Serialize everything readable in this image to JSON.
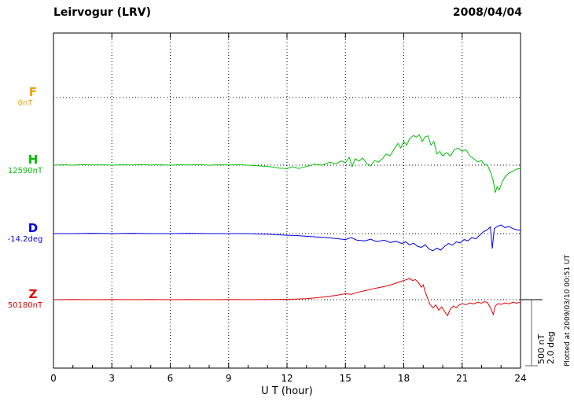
{
  "chart_data": {
    "type": "line",
    "title": "Leirvogur (LRV)",
    "date": "2008/04/04",
    "xlabel": "U T (hour)",
    "x_range": [
      0,
      24
    ],
    "x_ticks": [
      0,
      3,
      6,
      9,
      12,
      15,
      18,
      21,
      24
    ],
    "grid": "dotted vertical lines every 3 hours; dotted horizontal baseline per trace",
    "legend_position": "left margin",
    "scale_bar": {
      "nT": 500,
      "deg": 2.0,
      "lines": [
        "500 nT",
        "2.0 deg"
      ]
    },
    "plotted_note": "Plotted at 2009/03/10 00:51 UT",
    "series": [
      {
        "name": "F",
        "label": "F",
        "baseline_label": "0nT",
        "unit": "nT",
        "color": "#f0a000",
        "points": []
      },
      {
        "name": "H",
        "label": "H",
        "baseline_label": "12590nT",
        "unit": "nT",
        "color": "#00c000",
        "points": [
          [
            0,
            0
          ],
          [
            0.5,
            3
          ],
          [
            1,
            0
          ],
          [
            1.5,
            4
          ],
          [
            2,
            1
          ],
          [
            2.5,
            3
          ],
          [
            3,
            0
          ],
          [
            3.5,
            3
          ],
          [
            4,
            1
          ],
          [
            4.5,
            4
          ],
          [
            5,
            1
          ],
          [
            5.5,
            3
          ],
          [
            6,
            0
          ],
          [
            6.5,
            3
          ],
          [
            7,
            1
          ],
          [
            7.5,
            4
          ],
          [
            8,
            0
          ],
          [
            8.5,
            3
          ],
          [
            9,
            1
          ],
          [
            9.5,
            3
          ],
          [
            10,
            0
          ],
          [
            10.5,
            -5
          ],
          [
            11,
            -10
          ],
          [
            11.3,
            -15
          ],
          [
            11.6,
            -22
          ],
          [
            12,
            -25
          ],
          [
            12.3,
            -12
          ],
          [
            12.6,
            -25
          ],
          [
            13,
            -10
          ],
          [
            13.4,
            8
          ],
          [
            13.8,
            0
          ],
          [
            14.2,
            22
          ],
          [
            14.5,
            10
          ],
          [
            14.8,
            32
          ],
          [
            15,
            18
          ],
          [
            15.2,
            60
          ],
          [
            15.35,
            -12
          ],
          [
            15.5,
            48
          ],
          [
            15.7,
            32
          ],
          [
            15.9,
            55
          ],
          [
            16.1,
            10
          ],
          [
            16.3,
            -5
          ],
          [
            16.5,
            35
          ],
          [
            16.7,
            22
          ],
          [
            16.9,
            48
          ],
          [
            17.1,
            85
          ],
          [
            17.3,
            70
          ],
          [
            17.5,
            120
          ],
          [
            17.7,
            165
          ],
          [
            17.85,
            130
          ],
          [
            18,
            180
          ],
          [
            18.15,
            152
          ],
          [
            18.3,
            200
          ],
          [
            18.5,
            225
          ],
          [
            18.65,
            212
          ],
          [
            18.8,
            230
          ],
          [
            18.95,
            178
          ],
          [
            19.1,
            215
          ],
          [
            19.25,
            222
          ],
          [
            19.4,
            152
          ],
          [
            19.55,
            178
          ],
          [
            19.7,
            85
          ],
          [
            19.85,
            105
          ],
          [
            20,
            70
          ],
          [
            20.2,
            95
          ],
          [
            20.4,
            70
          ],
          [
            20.6,
            118
          ],
          [
            20.8,
            130
          ],
          [
            21,
            105
          ],
          [
            21.2,
            118
          ],
          [
            21.4,
            70
          ],
          [
            21.6,
            48
          ],
          [
            21.8,
            25
          ],
          [
            22,
            35
          ],
          [
            22.1,
            10
          ],
          [
            22.3,
            0
          ],
          [
            22.45,
            -48
          ],
          [
            22.6,
            -118
          ],
          [
            22.7,
            -208
          ],
          [
            22.8,
            -162
          ],
          [
            22.9,
            -188
          ],
          [
            23.05,
            -128
          ],
          [
            23.2,
            -90
          ],
          [
            23.4,
            -60
          ],
          [
            23.6,
            -48
          ],
          [
            23.8,
            -30
          ],
          [
            24,
            -25
          ]
        ]
      },
      {
        "name": "D",
        "label": "D",
        "baseline_label": "-14.2deg",
        "unit": "deg",
        "color": "#0000e0",
        "points": [
          [
            0,
            0
          ],
          [
            1,
            0
          ],
          [
            2,
            0.01
          ],
          [
            3,
            0
          ],
          [
            4,
            0.01
          ],
          [
            5,
            0
          ],
          [
            6,
            0
          ],
          [
            7,
            0.01
          ],
          [
            8,
            0
          ],
          [
            9,
            0
          ],
          [
            10,
            0
          ],
          [
            11,
            -0.02
          ],
          [
            12,
            -0.05
          ],
          [
            12.5,
            -0.06
          ],
          [
            13,
            -0.08
          ],
          [
            13.5,
            -0.1
          ],
          [
            14,
            -0.12
          ],
          [
            14.5,
            -0.15
          ],
          [
            15,
            -0.18
          ],
          [
            15.3,
            -0.12
          ],
          [
            15.6,
            -0.2
          ],
          [
            16,
            -0.22
          ],
          [
            16.3,
            -0.17
          ],
          [
            16.6,
            -0.24
          ],
          [
            17,
            -0.2
          ],
          [
            17.3,
            -0.27
          ],
          [
            17.6,
            -0.23
          ],
          [
            17.9,
            -0.3
          ],
          [
            18.1,
            -0.25
          ],
          [
            18.3,
            -0.34
          ],
          [
            18.5,
            -0.29
          ],
          [
            18.7,
            -0.38
          ],
          [
            18.9,
            -0.42
          ],
          [
            19.1,
            -0.34
          ],
          [
            19.3,
            -0.47
          ],
          [
            19.5,
            -0.52
          ],
          [
            19.7,
            -0.44
          ],
          [
            19.9,
            -0.5
          ],
          [
            20.1,
            -0.38
          ],
          [
            20.3,
            -0.3
          ],
          [
            20.5,
            -0.35
          ],
          [
            20.7,
            -0.25
          ],
          [
            20.9,
            -0.28
          ],
          [
            21.1,
            -0.18
          ],
          [
            21.3,
            -0.22
          ],
          [
            21.5,
            -0.12
          ],
          [
            21.7,
            -0.16
          ],
          [
            21.9,
            -0.05
          ],
          [
            22.1,
            0.06
          ],
          [
            22.3,
            0.12
          ],
          [
            22.45,
            0.2
          ],
          [
            22.55,
            -0.45
          ],
          [
            22.65,
            0.15
          ],
          [
            22.8,
            0.22
          ],
          [
            23,
            0.26
          ],
          [
            23.2,
            0.18
          ],
          [
            23.4,
            0.22
          ],
          [
            23.6,
            0.15
          ],
          [
            23.8,
            0.12
          ],
          [
            24,
            0.1
          ]
        ]
      },
      {
        "name": "Z",
        "label": "Z",
        "baseline_label": "50180nT",
        "unit": "nT",
        "color": "#e00000",
        "points": [
          [
            0,
            0
          ],
          [
            1,
            2
          ],
          [
            2,
            0
          ],
          [
            3,
            2
          ],
          [
            4,
            0
          ],
          [
            5,
            2
          ],
          [
            6,
            0
          ],
          [
            7,
            2
          ],
          [
            8,
            0
          ],
          [
            9,
            2
          ],
          [
            10,
            0
          ],
          [
            11,
            2
          ],
          [
            12,
            3
          ],
          [
            12.5,
            5
          ],
          [
            13,
            8
          ],
          [
            13.5,
            14
          ],
          [
            14,
            22
          ],
          [
            14.5,
            32
          ],
          [
            15,
            45
          ],
          [
            15.3,
            40
          ],
          [
            15.6,
            55
          ],
          [
            16,
            68
          ],
          [
            16.5,
            85
          ],
          [
            17,
            100
          ],
          [
            17.3,
            110
          ],
          [
            17.6,
            125
          ],
          [
            17.9,
            140
          ],
          [
            18.1,
            150
          ],
          [
            18.3,
            160
          ],
          [
            18.45,
            145
          ],
          [
            18.6,
            152
          ],
          [
            18.75,
            130
          ],
          [
            18.9,
            95
          ],
          [
            19,
            112
          ],
          [
            19.1,
            60
          ],
          [
            19.2,
            20
          ],
          [
            19.35,
            -35
          ],
          [
            19.5,
            -62
          ],
          [
            19.65,
            -40
          ],
          [
            19.8,
            -80
          ],
          [
            19.95,
            -55
          ],
          [
            20.1,
            -90
          ],
          [
            20.25,
            -120
          ],
          [
            20.4,
            -70
          ],
          [
            20.55,
            -48
          ],
          [
            20.7,
            -62
          ],
          [
            20.85,
            -40
          ],
          [
            21,
            -30
          ],
          [
            21.2,
            -38
          ],
          [
            21.4,
            -25
          ],
          [
            21.6,
            -32
          ],
          [
            21.8,
            -20
          ],
          [
            22,
            -26
          ],
          [
            22.15,
            -15
          ],
          [
            22.3,
            -22
          ],
          [
            22.45,
            -60
          ],
          [
            22.6,
            -112
          ],
          [
            22.7,
            -48
          ],
          [
            22.85,
            -30
          ],
          [
            23,
            -36
          ],
          [
            23.2,
            -25
          ],
          [
            23.4,
            -32
          ],
          [
            23.6,
            -20
          ],
          [
            23.8,
            -26
          ],
          [
            24,
            -20
          ]
        ]
      }
    ]
  }
}
